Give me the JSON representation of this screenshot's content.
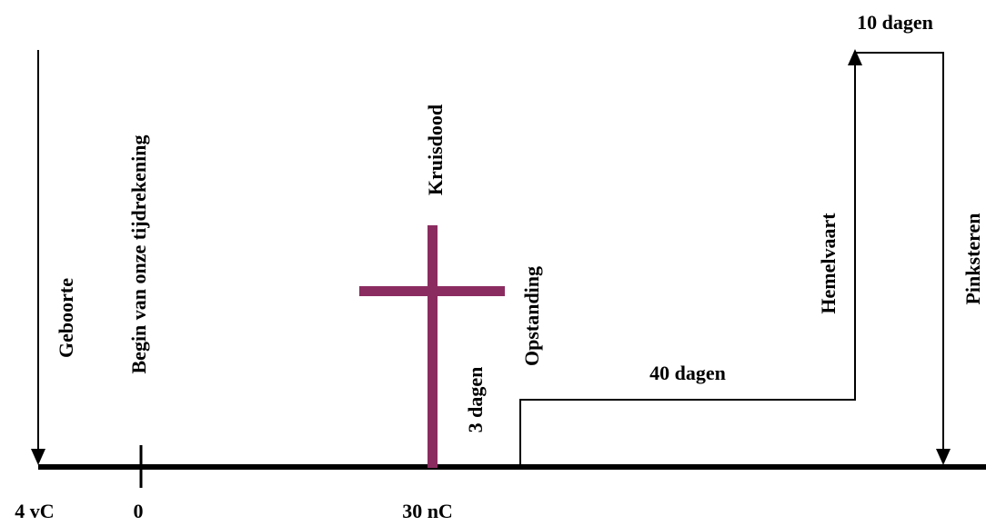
{
  "colors": {
    "line": "#000000",
    "cross": "#8b2c60",
    "background": "#ffffff"
  },
  "events": {
    "geboorte": "Geboorte",
    "begin": "Begin van onze tijdrekening",
    "kruisdood": "Kruisdood",
    "opstanding": "Opstanding",
    "hemelvaart": "Hemelvaart",
    "pinksteren": "Pinksteren"
  },
  "durations": {
    "three_days": "3 dagen",
    "forty_days": "40 dagen",
    "ten_days": "10 dagen"
  },
  "ticks": {
    "birth_year": "4 vC",
    "zero": "0",
    "death_year": "30 nC"
  }
}
